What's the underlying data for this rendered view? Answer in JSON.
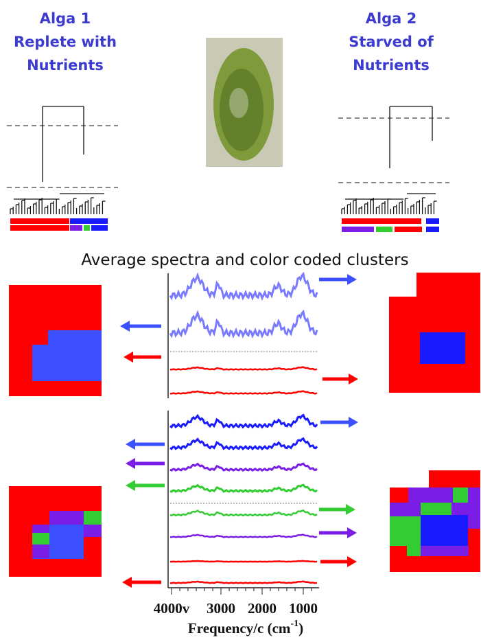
{
  "left_title": {
    "lines": [
      "Alga 1",
      "Replete with",
      "Nutrients"
    ]
  },
  "right_title": {
    "lines": [
      "Alga 2",
      "Starved of",
      "Nutrients"
    ]
  },
  "caption": "Average spectra and color coded clusters",
  "x_axis": {
    "ticks": [
      "4000v",
      "3000",
      "2000",
      "1000"
    ],
    "label": "Frequency/c (cm",
    "label_sup": "-1",
    "label_end": ")"
  }
}
